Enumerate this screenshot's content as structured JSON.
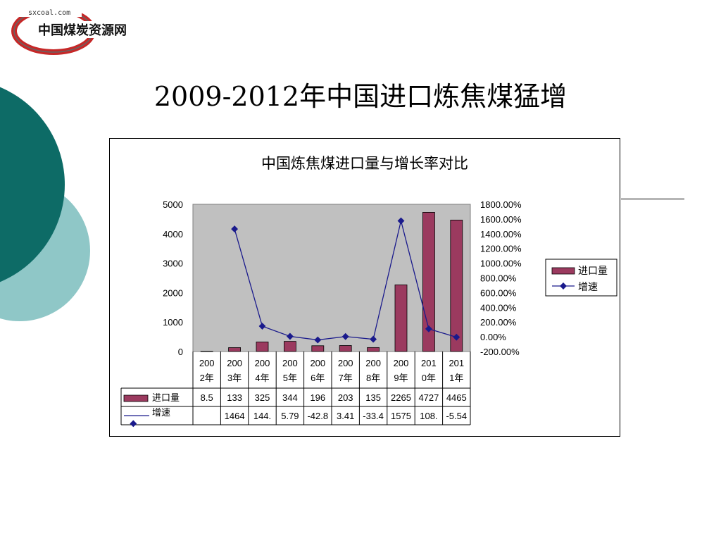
{
  "logo": {
    "url_text": "sxcoal.com",
    "name_text": "中国煤炭资源网"
  },
  "slide": {
    "title": "2009-2012年中国进口炼焦煤猛增"
  },
  "colors": {
    "teal_dark": "#0d6b66",
    "teal_light": "#8fc7c7",
    "bar": "#9b3a5f",
    "line": "#1a1a8c",
    "plot_bg": "#c0c0c0"
  },
  "chart_data": {
    "type": "bar",
    "title": "中国炼焦煤进口量与增长率对比",
    "categories": [
      "2002年",
      "2003年",
      "2004年",
      "2005年",
      "2006年",
      "2007年",
      "2008年",
      "2009年",
      "2010年",
      "2011年"
    ],
    "category_lines": [
      [
        "200",
        "2年"
      ],
      [
        "200",
        "3年"
      ],
      [
        "200",
        "4年"
      ],
      [
        "200",
        "5年"
      ],
      [
        "200",
        "6年"
      ],
      [
        "200",
        "7年"
      ],
      [
        "200",
        "8年"
      ],
      [
        "200",
        "9年"
      ],
      [
        "201",
        "0年"
      ],
      [
        "201",
        "1年"
      ]
    ],
    "series": [
      {
        "name": "进口量",
        "type": "bar",
        "axis": "left",
        "color": "#9b3a5f",
        "values": [
          8.5,
          133,
          325,
          344,
          196,
          203,
          135,
          2265,
          4727,
          4465
        ]
      },
      {
        "name": "增速",
        "type": "line",
        "axis": "right",
        "color": "#1a1a8c",
        "values": [
          null,
          1464,
          144,
          5.79,
          -42.8,
          3.41,
          -33.4,
          1575,
          108,
          -5.54
        ]
      }
    ],
    "table_rows": [
      {
        "label": "进口量",
        "cells": [
          "8.5",
          "133",
          "325",
          "344",
          "196",
          "203",
          "135",
          "2265",
          "4727",
          "4465"
        ]
      },
      {
        "label": "增速",
        "cells": [
          "",
          "1464",
          "144.",
          "5.79",
          "-42.8",
          "3.41",
          "-33.4",
          "1575",
          "108.",
          "-5.54"
        ]
      }
    ],
    "y_left": {
      "min": 0,
      "max": 5000,
      "ticks": [
        5000,
        4000,
        3000,
        2000,
        1000,
        0
      ]
    },
    "y_right": {
      "min": -200,
      "max": 1800,
      "ticks": [
        1800,
        1600,
        1400,
        1200,
        1000,
        800,
        600,
        400,
        200,
        0,
        -200
      ],
      "tick_labels": [
        "1800.00%",
        "1600.00%",
        "1400.00%",
        "1200.00%",
        "1000.00%",
        "800.00%",
        "600.00%",
        "400.00%",
        "200.00%",
        "0.00%",
        "-200.00%"
      ]
    },
    "legend": {
      "placement": "right",
      "entries": [
        "进口量",
        "增速"
      ]
    },
    "grid": false
  }
}
